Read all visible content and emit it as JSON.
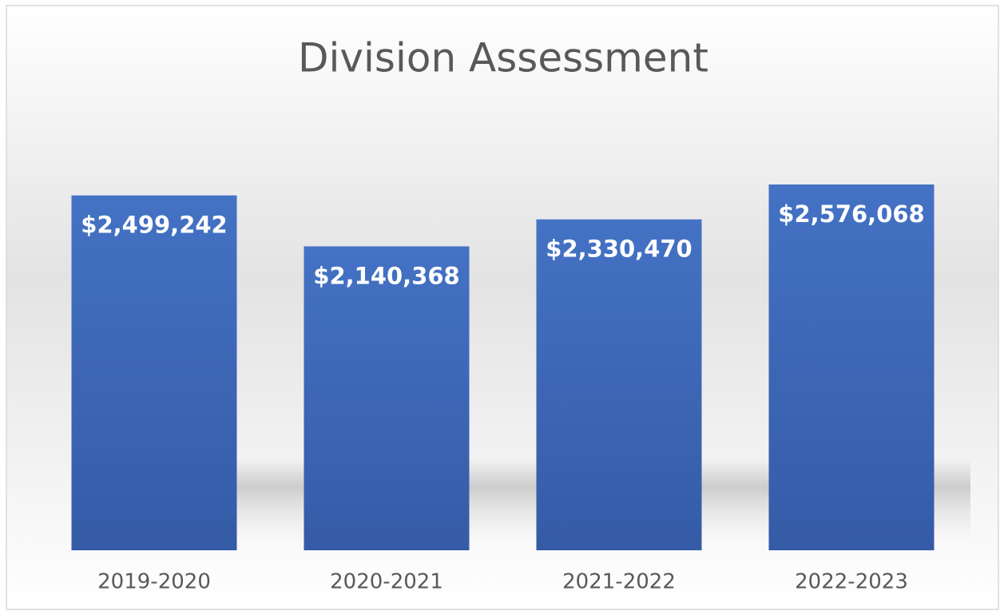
{
  "chart_data": {
    "type": "bar",
    "title": "Division Assessment",
    "categories": [
      "2019-2020",
      "2020-2021",
      "2021-2022",
      "2022-2023"
    ],
    "values": [
      2499242,
      2140368,
      2330470,
      2576068
    ],
    "value_labels": [
      "$2,499,242",
      "$2,140,368",
      "$2,330,470",
      "$2,576,068"
    ],
    "color": "#4472c4"
  }
}
